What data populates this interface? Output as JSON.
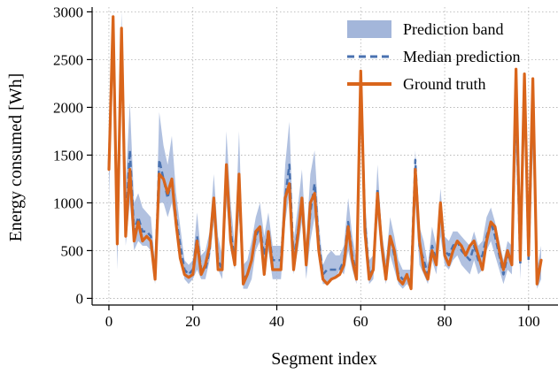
{
  "chart_data": {
    "type": "line",
    "xlabel": "Segment index",
    "ylabel": "Energy consumed [Wh]",
    "xlim": [
      -4,
      107
    ],
    "ylim": [
      -70,
      3050
    ],
    "xticks": [
      0,
      20,
      40,
      60,
      80,
      100
    ],
    "yticks": [
      0,
      500,
      1000,
      1500,
      2000,
      2500,
      3000
    ],
    "grid": true,
    "legend_position": "top-right",
    "colors": {
      "band": "#a3b6da",
      "median": "#4a72b0",
      "truth": "#d9651b"
    },
    "x": [
      0,
      1,
      2,
      3,
      4,
      5,
      6,
      7,
      8,
      9,
      10,
      11,
      12,
      13,
      14,
      15,
      16,
      17,
      18,
      19,
      20,
      21,
      22,
      23,
      24,
      25,
      26,
      27,
      28,
      29,
      30,
      31,
      32,
      33,
      34,
      35,
      36,
      37,
      38,
      39,
      40,
      41,
      42,
      43,
      44,
      45,
      46,
      47,
      48,
      49,
      50,
      51,
      52,
      53,
      54,
      55,
      56,
      57,
      58,
      59,
      60,
      61,
      62,
      63,
      64,
      65,
      66,
      67,
      68,
      69,
      70,
      71,
      72,
      73,
      74,
      75,
      76,
      77,
      78,
      79,
      80,
      81,
      82,
      83,
      84,
      85,
      86,
      87,
      88,
      89,
      90,
      91,
      92,
      93,
      94,
      95,
      96,
      97,
      98,
      99,
      100,
      101,
      102,
      103
    ],
    "series": [
      {
        "name": "Prediction band",
        "kind": "band",
        "lower": [
          1050,
          2400,
          300,
          2300,
          550,
          1000,
          500,
          600,
          550,
          550,
          500,
          150,
          1000,
          1000,
          850,
          1000,
          700,
          450,
          200,
          150,
          200,
          300,
          200,
          200,
          400,
          800,
          300,
          200,
          1000,
          500,
          300,
          850,
          100,
          100,
          200,
          500,
          600,
          300,
          500,
          200,
          200,
          200,
          800,
          1100,
          250,
          500,
          800,
          200,
          600,
          850,
          400,
          150,
          150,
          200,
          200,
          300,
          250,
          500,
          300,
          150,
          1800,
          600,
          150,
          200,
          850,
          400,
          150,
          450,
          300,
          150,
          100,
          150,
          100,
          1000,
          350,
          250,
          150,
          400,
          250,
          650,
          350,
          300,
          400,
          450,
          350,
          300,
          250,
          400,
          250,
          300,
          500,
          600,
          450,
          300,
          150,
          300,
          250,
          1500,
          200,
          1700,
          300,
          1500,
          100,
          200
        ],
        "median": [
          1400,
          2900,
          600,
          2800,
          750,
          1550,
          700,
          850,
          700,
          700,
          650,
          220,
          1450,
          1250,
          1050,
          1250,
          850,
          550,
          300,
          250,
          300,
          650,
          300,
          300,
          500,
          1000,
          400,
          300,
          1350,
          700,
          400,
          1150,
          200,
          250,
          400,
          650,
          750,
          450,
          700,
          400,
          400,
          400,
          1050,
          1400,
          400,
          700,
          1000,
          400,
          900,
          1200,
          600,
          250,
          300,
          300,
          300,
          300,
          400,
          800,
          450,
          250,
          2300,
          800,
          250,
          300,
          1150,
          550,
          250,
          650,
          450,
          250,
          200,
          200,
          200,
          1450,
          550,
          400,
          250,
          550,
          400,
          950,
          500,
          450,
          550,
          600,
          500,
          450,
          400,
          550,
          400,
          450,
          650,
          800,
          650,
          450,
          250,
          450,
          400,
          2100,
          350,
          2300,
          400,
          2200,
          200,
          400
        ],
        "upper": [
          1800,
          3000,
          900,
          3000,
          1200,
          2050,
          1000,
          1100,
          950,
          900,
          850,
          350,
          1950,
          1600,
          1400,
          1700,
          1100,
          750,
          400,
          350,
          400,
          900,
          450,
          500,
          700,
          1300,
          650,
          450,
          1750,
          1000,
          550,
          1750,
          350,
          400,
          600,
          850,
          1000,
          650,
          900,
          550,
          550,
          550,
          1400,
          1850,
          600,
          950,
          1350,
          600,
          1300,
          1550,
          800,
          350,
          450,
          500,
          450,
          450,
          550,
          1050,
          650,
          400,
          2400,
          1050,
          400,
          450,
          1400,
          700,
          400,
          850,
          650,
          400,
          300,
          300,
          300,
          1550,
          750,
          600,
          350,
          750,
          550,
          1150,
          650,
          600,
          700,
          700,
          650,
          600,
          550,
          700,
          550,
          600,
          850,
          950,
          800,
          600,
          400,
          600,
          550,
          2400,
          500,
          2400,
          550,
          2300,
          300,
          550
        ]
      },
      {
        "name": "Median prediction",
        "kind": "dashed"
      },
      {
        "name": "Ground truth",
        "kind": "line",
        "values": [
          1350,
          2950,
          570,
          2830,
          650,
          1350,
          600,
          800,
          600,
          650,
          600,
          200,
          1300,
          1250,
          1100,
          1250,
          780,
          420,
          250,
          220,
          250,
          600,
          250,
          350,
          550,
          1050,
          300,
          300,
          1400,
          600,
          350,
          1300,
          150,
          250,
          400,
          700,
          750,
          250,
          700,
          300,
          300,
          300,
          1050,
          1200,
          300,
          650,
          1050,
          350,
          1000,
          1100,
          500,
          200,
          150,
          200,
          220,
          250,
          350,
          750,
          400,
          200,
          2380,
          700,
          200,
          300,
          1100,
          550,
          200,
          650,
          500,
          200,
          150,
          250,
          100,
          1350,
          600,
          300,
          200,
          500,
          350,
          1000,
          450,
          350,
          500,
          600,
          550,
          450,
          550,
          600,
          450,
          300,
          600,
          800,
          750,
          500,
          300,
          500,
          350,
          2400,
          400,
          2350,
          450,
          2300,
          150,
          400
        ]
      }
    ]
  }
}
